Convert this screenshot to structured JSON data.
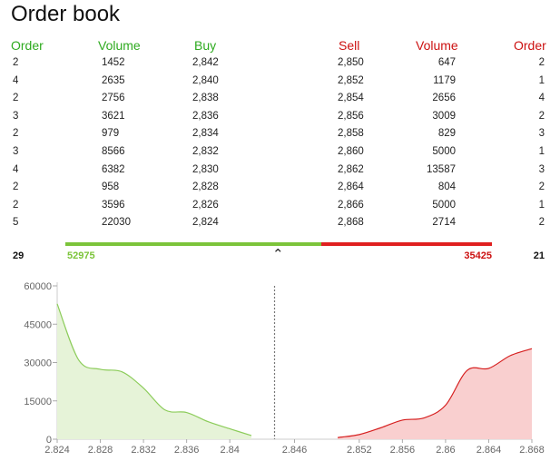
{
  "title": "Order book",
  "headers": {
    "order_left": "Order",
    "volume_left": "Volume",
    "buy": "Buy",
    "sell": "Sell",
    "volume_right": "Volume",
    "order_right": "Order"
  },
  "rows": [
    {
      "order_b": "2",
      "vol_b": "1452",
      "buy": "2,842",
      "sell": "2,850",
      "vol_s": "647",
      "order_s": "2"
    },
    {
      "order_b": "4",
      "vol_b": "2635",
      "buy": "2,840",
      "sell": "2,852",
      "vol_s": "1179",
      "order_s": "1"
    },
    {
      "order_b": "2",
      "vol_b": "2756",
      "buy": "2,838",
      "sell": "2,854",
      "vol_s": "2656",
      "order_s": "4"
    },
    {
      "order_b": "3",
      "vol_b": "3621",
      "buy": "2,836",
      "sell": "2,856",
      "vol_s": "3009",
      "order_s": "2"
    },
    {
      "order_b": "2",
      "vol_b": "979",
      "buy": "2,834",
      "sell": "2,858",
      "vol_s": "829",
      "order_s": "3"
    },
    {
      "order_b": "3",
      "vol_b": "8566",
      "buy": "2,832",
      "sell": "2,860",
      "vol_s": "5000",
      "order_s": "1"
    },
    {
      "order_b": "4",
      "vol_b": "6382",
      "buy": "2,830",
      "sell": "2,862",
      "vol_s": "13587",
      "order_s": "3"
    },
    {
      "order_b": "2",
      "vol_b": "958",
      "buy": "2,828",
      "sell": "2,864",
      "vol_s": "804",
      "order_s": "2"
    },
    {
      "order_b": "2",
      "vol_b": "3596",
      "buy": "2,826",
      "sell": "2,866",
      "vol_s": "5000",
      "order_s": "1"
    },
    {
      "order_b": "5",
      "vol_b": "22030",
      "buy": "2,824",
      "sell": "2,868",
      "vol_s": "2714",
      "order_s": "2"
    }
  ],
  "totals": {
    "order_buy": "29",
    "volume_buy": "52975",
    "volume_sell": "35425",
    "order_sell": "21"
  },
  "balance": {
    "buy_fraction": 0.599
  },
  "colors": {
    "buy": "#2eaa1f",
    "sell": "#cc1111",
    "buy_fill": "#e6f3d8",
    "sell_fill": "#f9cfcf"
  },
  "chart_data": {
    "type": "area",
    "xlim": [
      2.824,
      2.868
    ],
    "ylim": [
      0,
      60000
    ],
    "yticks": [
      "0",
      "15000",
      "30000",
      "45000",
      "60000"
    ],
    "xticks": [
      "2.824",
      "2.828",
      "2.832",
      "2.836",
      "2.84",
      "2.846",
      "2.852",
      "2.856",
      "2.86",
      "2.864",
      "2.868"
    ],
    "series": [
      {
        "side": "buy",
        "x": [
          2.824,
          2.826,
          2.828,
          2.83,
          2.832,
          2.834,
          2.836,
          2.838,
          2.84,
          2.842
        ],
        "y": [
          52975,
          30945,
          27349,
          26391,
          20009,
          11443,
          10464,
          6843,
          4087,
          1452
        ]
      },
      {
        "side": "sell",
        "x": [
          2.85,
          2.852,
          2.854,
          2.856,
          2.858,
          2.86,
          2.862,
          2.864,
          2.866,
          2.868
        ],
        "y": [
          647,
          1826,
          4482,
          7491,
          8320,
          13320,
          26907,
          27711,
          32711,
          35425
        ]
      }
    ],
    "mid_line_x": 2.846
  }
}
